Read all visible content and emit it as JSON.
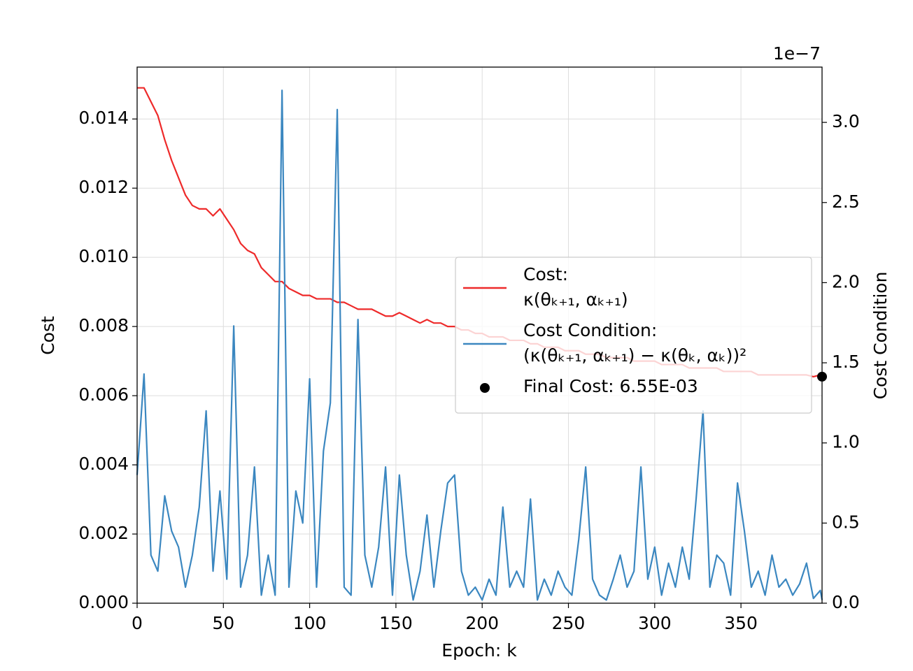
{
  "chart_data": {
    "type": "line",
    "xlabel": "Epoch: k",
    "ylabel": "Cost",
    "y2label": "Cost Condition",
    "y2_offset_label": "1e−7",
    "xlim": [
      0,
      397
    ],
    "ylim": [
      0,
      0.0155
    ],
    "y2lim": [
      0,
      3.345
    ],
    "xticks": [
      0,
      50,
      100,
      150,
      200,
      250,
      300,
      350
    ],
    "yticks": [
      {
        "value": 0,
        "label": "0.000"
      },
      {
        "value": 0.002,
        "label": "0.002"
      },
      {
        "value": 0.004,
        "label": "0.004"
      },
      {
        "value": 0.006,
        "label": "0.006"
      },
      {
        "value": 0.008,
        "label": "0.008"
      },
      {
        "value": 0.01,
        "label": "0.010"
      },
      {
        "value": 0.012,
        "label": "0.012"
      },
      {
        "value": 0.014,
        "label": "0.014"
      }
    ],
    "y2ticks": [
      {
        "value": 0,
        "label": "0.0"
      },
      0.5,
      {
        "value": 1,
        "label": "1.0"
      },
      1.5,
      {
        "value": 2,
        "label": "2.0"
      },
      2.5,
      {
        "value": 3,
        "label": "3.0"
      }
    ],
    "grid": true,
    "legend": "center right",
    "x": [
      0,
      4,
      8,
      12,
      16,
      20,
      24,
      28,
      32,
      36,
      40,
      44,
      48,
      52,
      56,
      60,
      64,
      68,
      72,
      76,
      80,
      84,
      88,
      92,
      96,
      100,
      104,
      108,
      112,
      116,
      120,
      124,
      128,
      132,
      136,
      140,
      144,
      148,
      152,
      156,
      160,
      164,
      168,
      172,
      176,
      180,
      184,
      188,
      192,
      196,
      200,
      204,
      208,
      212,
      216,
      220,
      224,
      228,
      232,
      236,
      240,
      244,
      248,
      252,
      256,
      260,
      264,
      268,
      272,
      276,
      280,
      284,
      288,
      292,
      296,
      300,
      304,
      308,
      312,
      316,
      320,
      324,
      328,
      332,
      336,
      340,
      344,
      348,
      352,
      356,
      360,
      364,
      368,
      372,
      376,
      380,
      384,
      388,
      392,
      396,
      397
    ],
    "series": [
      {
        "name": "Cost:\nκ(θₖ₊₁, αₖ₊₁)",
        "color": "#ee2a2a",
        "axis": "y",
        "values": [
          0.0149,
          0.0149,
          0.0145,
          0.0141,
          0.0134,
          0.0128,
          0.0123,
          0.0118,
          0.0115,
          0.0114,
          0.0114,
          0.0112,
          0.0114,
          0.0111,
          0.0108,
          0.0104,
          0.0102,
          0.0101,
          0.0097,
          0.0095,
          0.0093,
          0.0093,
          0.0091,
          0.009,
          0.0089,
          0.0089,
          0.0088,
          0.0088,
          0.0088,
          0.0087,
          0.0087,
          0.0086,
          0.0085,
          0.0085,
          0.0085,
          0.0084,
          0.0083,
          0.0083,
          0.0084,
          0.0083,
          0.0082,
          0.0081,
          0.0082,
          0.0081,
          0.0081,
          0.008,
          0.008,
          0.0079,
          0.0079,
          0.0078,
          0.0078,
          0.0077,
          0.0077,
          0.0077,
          0.0076,
          0.0076,
          0.0076,
          0.0075,
          0.0075,
          0.0074,
          0.0074,
          0.0074,
          0.0073,
          0.0073,
          0.0073,
          0.0072,
          0.0072,
          0.0072,
          0.0071,
          0.0071,
          0.0071,
          0.0071,
          0.007,
          0.007,
          0.007,
          0.007,
          0.0069,
          0.0069,
          0.0069,
          0.0069,
          0.0068,
          0.0068,
          0.0068,
          0.0068,
          0.0068,
          0.0067,
          0.0067,
          0.0067,
          0.0067,
          0.0067,
          0.0066,
          0.0066,
          0.0066,
          0.0066,
          0.0066,
          0.0066,
          0.0066,
          0.0066,
          0.00655,
          0.0066,
          0.00655
        ]
      },
      {
        "name": "Cost Condition:\n(κ(θₖ₊₁, αₖ₊₁) − κ(θₖ, αₖ))²",
        "color": "#3b87c0",
        "axis": "y2",
        "values": [
          0.8,
          1.43,
          0.3,
          0.2,
          0.67,
          0.45,
          0.35,
          0.1,
          0.3,
          0.6,
          1.2,
          0.2,
          0.7,
          0.15,
          1.73,
          0.1,
          0.3,
          0.85,
          0.05,
          0.3,
          0.05,
          3.2,
          0.1,
          0.7,
          0.5,
          1.4,
          0.1,
          0.95,
          1.25,
          3.08,
          0.1,
          0.05,
          1.77,
          0.3,
          0.1,
          0.35,
          0.85,
          0.05,
          0.8,
          0.3,
          0.02,
          0.2,
          0.55,
          0.1,
          0.45,
          0.75,
          0.8,
          0.2,
          0.05,
          0.1,
          0.02,
          0.15,
          0.05,
          0.6,
          0.1,
          0.2,
          0.1,
          0.65,
          0.02,
          0.15,
          0.05,
          0.2,
          0.1,
          0.05,
          0.4,
          0.85,
          0.15,
          0.05,
          0.02,
          0.15,
          0.3,
          0.1,
          0.2,
          0.85,
          0.15,
          0.35,
          0.05,
          0.25,
          0.1,
          0.35,
          0.15,
          0.65,
          1.2,
          0.1,
          0.3,
          0.25,
          0.05,
          0.75,
          0.45,
          0.1,
          0.2,
          0.05,
          0.3,
          0.1,
          0.15,
          0.05,
          0.12,
          0.25,
          0.03,
          0.08,
          0.02
        ]
      }
    ],
    "final_point": {
      "label": "Final Cost: 6.55E-03",
      "x": 397,
      "value": 0.00655,
      "color": "#000000"
    }
  }
}
